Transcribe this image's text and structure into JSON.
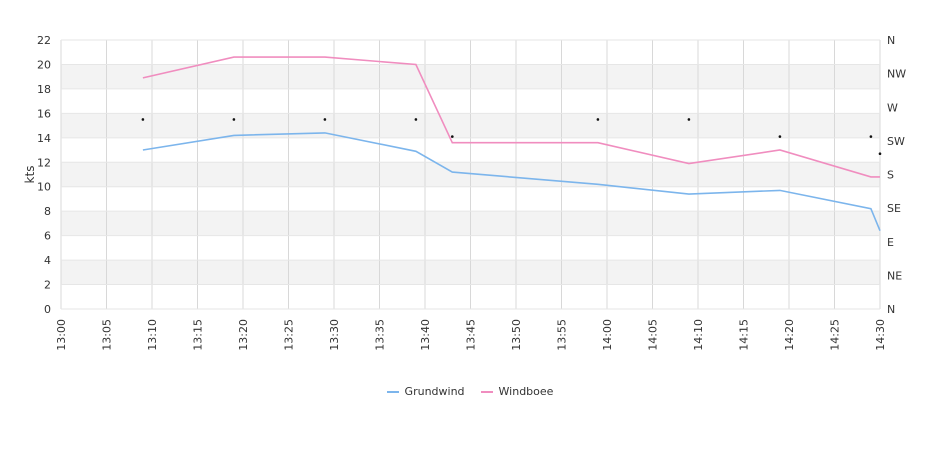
{
  "chart_data": {
    "type": "line",
    "ylabel": "kts",
    "ylim": [
      0,
      22
    ],
    "yticks": [
      "0",
      "2",
      "4",
      "6",
      "8",
      "10",
      "12",
      "14",
      "16",
      "18",
      "20",
      "22"
    ],
    "x_tick_labels": [
      "13:00",
      "13:05",
      "13:10",
      "13:15",
      "13:20",
      "13:25",
      "13:30",
      "13:35",
      "13:40",
      "13:45",
      "13:50",
      "13:55",
      "14:00",
      "14:05",
      "14:10",
      "14:15",
      "14:20",
      "14:25",
      "14:30"
    ],
    "x_range": [
      "13:00",
      "14:30"
    ],
    "direction_axis_labels": [
      "N",
      "NE",
      "E",
      "SE",
      "S",
      "SW",
      "W",
      "NW",
      "N"
    ],
    "grid": true,
    "legend_position": "bottom",
    "series": [
      {
        "name": "Grundwind",
        "color": "#7cb5ec",
        "points": [
          [
            "13:09",
            13.0
          ],
          [
            "13:19",
            14.2
          ],
          [
            "13:29",
            14.4
          ],
          [
            "13:39",
            12.9
          ],
          [
            "13:43",
            11.2
          ],
          [
            "13:59",
            10.2
          ],
          [
            "14:09",
            9.4
          ],
          [
            "14:19",
            9.7
          ],
          [
            "14:29",
            8.2
          ],
          [
            "14:30",
            6.4
          ]
        ]
      },
      {
        "name": "Windboee",
        "color": "#f08dbf",
        "points": [
          [
            "13:09",
            18.9
          ],
          [
            "13:19",
            20.6
          ],
          [
            "13:29",
            20.6
          ],
          [
            "13:39",
            20.0
          ],
          [
            "13:43",
            13.6
          ],
          [
            "13:59",
            13.6
          ],
          [
            "14:09",
            11.9
          ],
          [
            "14:19",
            13.0
          ],
          [
            "14:29",
            10.8
          ],
          [
            "14:30",
            10.8
          ]
        ]
      }
    ],
    "direction_markers": [
      [
        "13:09",
        15.5
      ],
      [
        "13:19",
        15.5
      ],
      [
        "13:29",
        15.5
      ],
      [
        "13:39",
        15.5
      ],
      [
        "13:43",
        14.1
      ],
      [
        "13:59",
        15.5
      ],
      [
        "14:09",
        15.5
      ],
      [
        "14:19",
        14.1
      ],
      [
        "14:29",
        14.1
      ],
      [
        "14:30",
        12.7
      ]
    ]
  }
}
